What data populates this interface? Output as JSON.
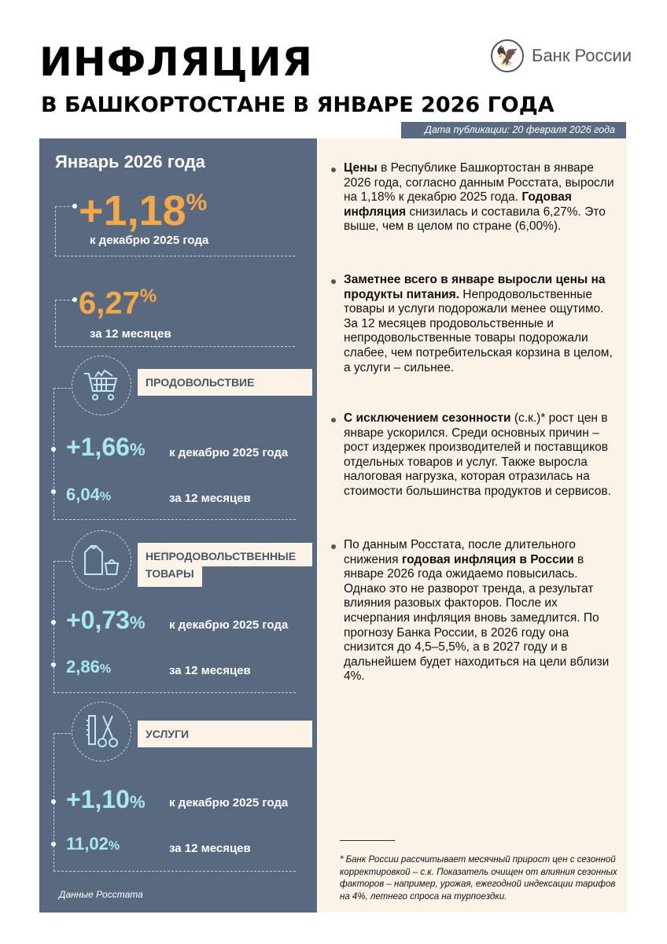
{
  "header": {
    "title": "ИНФЛЯЦИЯ",
    "subtitle": "В БАШКОРТОСТАНЕ В ЯНВАРЕ 2026 ГОДА",
    "logo_text": "Банк России",
    "logo_icon": "double-headed-eagle",
    "date": "Дата публикации: 20 февраля 2026 года"
  },
  "colors": {
    "panel": "#596a80",
    "cream": "#fcf3e8",
    "orange": "#f4a847",
    "cyan": "#a9e7f2"
  },
  "summary": {
    "period": "Январь 2026 года",
    "monthly_value": "+1,18",
    "monthly_unit": "%",
    "monthly_label": "к декабрю 2025 года",
    "annual_value": "6,27",
    "annual_unit": "%",
    "annual_label": "за 12 месяцев"
  },
  "categories": [
    {
      "label": "ПРОДОВОЛЬСТВИЕ",
      "icon": "shopping-cart",
      "monthly": "+1,66",
      "annual": "6,04",
      "unit": "%",
      "monthly_label": "к декабрю 2025 года",
      "annual_label": "за 12 месяцев"
    },
    {
      "label": "НЕПРОДОВОЛЬСТВЕННЫЕ",
      "label2": "ТОВАРЫ",
      "icon": "clothing-bag",
      "monthly": "+0,73",
      "annual": "2,86",
      "unit": "%",
      "monthly_label": "к декабрю 2025 года",
      "annual_label": "за 12 месяцев"
    },
    {
      "label": "УСЛУГИ",
      "icon": "comb-scissors",
      "monthly": "+1,10",
      "annual": "11,02",
      "unit": "%",
      "monthly_label": "к декабрю 2025 года",
      "annual_label": "за 12 месяцев"
    }
  ],
  "source": "Данные Росстата",
  "paragraphs": [
    [
      {
        "b": 1,
        "t": "Цены"
      },
      {
        "b": 0,
        "t": " в Республике Башкортостан в январе 2026 года, согласно данным Росстата, выросли на 1,18% к декабрю 2025 года. "
      },
      {
        "b": 1,
        "t": "Годовая инфляция"
      },
      {
        "b": 0,
        "t": " снизилась и составила 6,27%. Это выше, чем в целом по стране (6,00%)."
      }
    ],
    [
      {
        "b": 1,
        "t": "Заметнее всего в январе выросли цены на продукты питания."
      },
      {
        "b": 0,
        "t": " Непродовольственные товары и услуги подорожали менее ощутимо. За 12 месяцев продовольственные и непродовольственные товары подорожали слабее, чем потребительская корзина в целом, а услуги – сильнее."
      }
    ],
    [
      {
        "b": 1,
        "t": "С исключением сезонности"
      },
      {
        "b": 0,
        "t": " (с.к.)* рост цен в январе ускорился. Среди основных причин – рост издержек производителей и поставщиков отдельных товаров и услуг. Также выросла налоговая нагрузка, которая отразилась на стоимости большинства продуктов и сервисов."
      }
    ],
    [
      {
        "b": 0,
        "t": "По данным Росстата, после длительного снижения "
      },
      {
        "b": 1,
        "t": "годовая инфляция в России"
      },
      {
        "b": 0,
        "t": " в январе 2026 года ожидаемо повысилась. Однако это не разворот тренда, а результат влияния разовых факторов. После их исчерпания инфляция вновь замедлится. По прогнозу Банка России, в 2026 году она снизится до 4,5–5,5%, а в 2027 году и в дальнейшем будет находиться на цели вблизи 4%."
      }
    ]
  ],
  "footnote": "* Банк России рассчитывает месячный прирост цен с сезонной корректировкой – с.к. Показатель очищен от влияния сезонных факторов – например, урожая, ежегодной индексации тарифов на 4%, летнего спроса на турпоездки."
}
